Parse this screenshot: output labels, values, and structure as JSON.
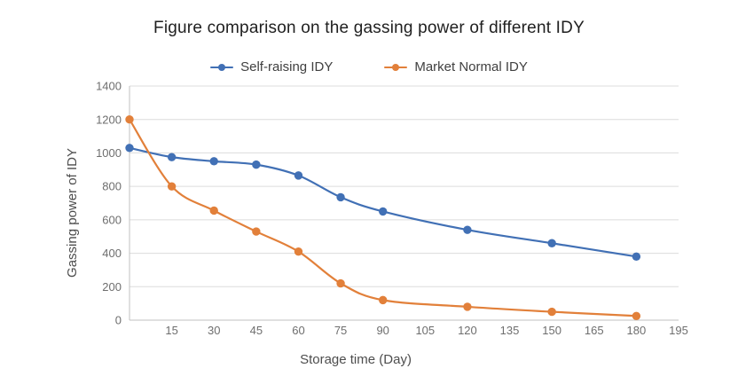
{
  "title": "Figure comparison on the gassing power of different IDY",
  "chart_data": {
    "type": "line",
    "title": "Figure comparison on the gassing power of different IDY",
    "xlabel": "Storage time (Day)",
    "ylabel": "Gassing power of IDY",
    "x": [
      0,
      15,
      30,
      45,
      60,
      75,
      90,
      120,
      150,
      180
    ],
    "series": [
      {
        "name": "Self-raising IDY",
        "color": "#4170B5",
        "values": [
          1030,
          975,
          950,
          930,
          865,
          735,
          650,
          540,
          460,
          380
        ]
      },
      {
        "name": "Market Normal IDY",
        "color": "#E2803A",
        "values": [
          1200,
          800,
          655,
          530,
          410,
          220,
          120,
          80,
          50,
          25
        ]
      }
    ],
    "xlim": [
      0,
      195
    ],
    "ylim": [
      0,
      1400
    ],
    "x_tick_labels": [
      15,
      30,
      45,
      60,
      75,
      90,
      105,
      120,
      135,
      150,
      165,
      180,
      195
    ],
    "y_tick_labels": [
      0,
      200,
      400,
      600,
      800,
      1000,
      1200,
      1400
    ],
    "grid": "horizontal",
    "legend_position": "top-center",
    "marker": "circle"
  }
}
